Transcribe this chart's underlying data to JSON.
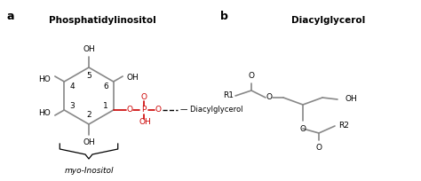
{
  "background": "#ffffff",
  "panel_a_label": "a",
  "panel_b_label": "b",
  "title_a": "Phosphatidylinositol",
  "title_b": "Diacylglycerol",
  "myo_label": "myo-Inositol",
  "line_color": "#888888",
  "red_color": "#cc0000",
  "black_color": "#000000",
  "bond_lw": 1.2
}
